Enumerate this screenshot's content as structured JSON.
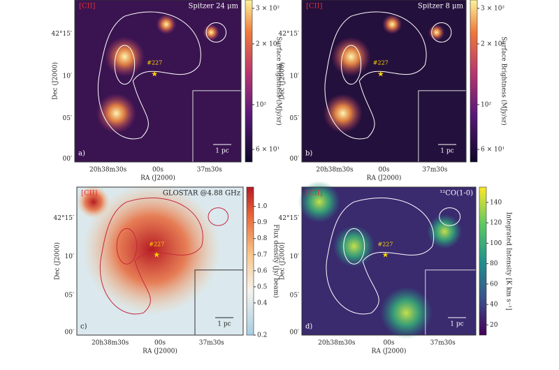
{
  "chart_data": [
    {
      "type": "heatmap",
      "panel_label": "a)",
      "tag": "[CII]",
      "instrument": "Spitzer 24 μm",
      "source_label": "#227",
      "scale_bar": "1 pc",
      "xlabel": "RA (J2000)",
      "ylabel": "Dec (J2000)",
      "xtick_labels": [
        "20h38m30s",
        "00s",
        "37m30s"
      ],
      "ytick_labels": [
        "42°15′",
        "10′",
        "05′",
        "00′"
      ],
      "colorbar": {
        "label": "Surface Brightness (MJy/sr)",
        "log": true,
        "lim": [
          52,
          330
        ],
        "ticks": [
          {
            "value": 60,
            "label": "6 × 10¹"
          },
          {
            "value": 100,
            "label": "10²"
          },
          {
            "value": 200,
            "label": "2 × 10²"
          },
          {
            "value": 300,
            "label": "3 × 10²"
          }
        ]
      }
    },
    {
      "type": "heatmap",
      "panel_label": "b)",
      "tag": "[CII]",
      "instrument": "Spitzer 8 μm",
      "source_label": "#227",
      "scale_bar": "1 pc",
      "xlabel": "RA (J2000)",
      "ylabel": "Dec (J2000)",
      "xtick_labels": [
        "20h38m30s",
        "00s",
        "37m30s"
      ],
      "ytick_labels": [
        "42°15′",
        "10′",
        "05′",
        "00′"
      ],
      "colorbar": {
        "label": "Surface Brightness (MJy/sr)",
        "log": true,
        "lim": [
          52,
          330
        ],
        "ticks": [
          {
            "value": 60,
            "label": "6 × 10¹"
          },
          {
            "value": 100,
            "label": "10²"
          },
          {
            "value": 200,
            "label": "2 × 10²"
          },
          {
            "value": 300,
            "label": "3 × 10²"
          }
        ]
      }
    },
    {
      "type": "heatmap",
      "panel_label": "c)",
      "tag": "[CII]",
      "instrument": "GLOSTAR @4.88 GHz",
      "source_label": "#227",
      "scale_bar": "1 pc",
      "xlabel": "RA (J2000)",
      "ylabel": "Dec (J2000)",
      "xtick_labels": [
        "20h38m30s",
        "00s",
        "37m30s"
      ],
      "ytick_labels": [
        "42°15′",
        "10′",
        "05′",
        "00′"
      ],
      "colorbar": {
        "label": "Flux density (Jy/ beam)",
        "log": false,
        "lim": [
          0.2,
          1.12
        ],
        "ticks": [
          0.2,
          0.4,
          0.5,
          0.6,
          0.7,
          0.8,
          0.9,
          {
            "value": 1.0,
            "label": "1.0"
          }
        ]
      }
    },
    {
      "type": "heatmap",
      "panel_label": "d)",
      "tag": "[CII]",
      "instrument": "¹²CO(1-0)",
      "source_label": "#227",
      "scale_bar": "1 pc",
      "xlabel": "RA (J2000)",
      "ylabel": "Dec (J2000)",
      "xtick_labels": [
        "20h38m30s",
        "00s",
        "37m30s"
      ],
      "ytick_labels": [
        "42°15′",
        "10′",
        "05′",
        "00′"
      ],
      "colorbar": {
        "label": "Integrated Intensity [K km s⁻¹]",
        "log": false,
        "lim": [
          10,
          155
        ],
        "ticks": [
          20,
          40,
          60,
          80,
          100,
          120,
          140
        ]
      }
    }
  ]
}
